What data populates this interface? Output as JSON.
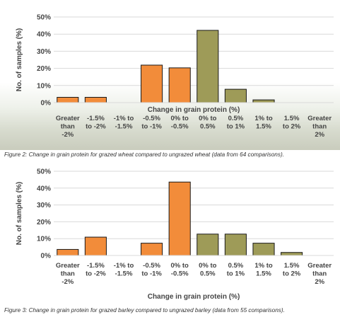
{
  "colors": {
    "negative": "#f28c3a",
    "positive": "#9e9b58",
    "stroke": "#1a1a1a",
    "grid": "#d9d9d9",
    "text": "#444444"
  },
  "chart_data": [
    {
      "type": "bar",
      "caption": "Figure 2: Change in grain protein for grazed wheat compared to ungrazed wheat (data from 64 comparisons).",
      "xlabel": "Change in grain protein (%)",
      "ylabel": "No. of samples (%)",
      "ylim": [
        0,
        50
      ],
      "yticks": [
        "0%",
        "10%",
        "20%",
        "30%",
        "40%",
        "50%"
      ],
      "grid": true,
      "categories": [
        [
          "Greater",
          "than",
          "-2%"
        ],
        [
          "-1.5%",
          "to -2%"
        ],
        [
          "-1% to",
          "-1.5%"
        ],
        [
          "-0.5%",
          "to -1%"
        ],
        [
          "0% to",
          "-0.5%"
        ],
        [
          "0% to",
          "0.5%"
        ],
        [
          "0.5%",
          "to 1%"
        ],
        [
          "1% to",
          "1.5%"
        ],
        [
          "1.5%",
          "to 2%"
        ],
        [
          "Greater",
          "than",
          "2%"
        ]
      ],
      "values": [
        3.1,
        3.1,
        0,
        21.9,
        20.3,
        42.2,
        7.8,
        1.6,
        0,
        0
      ],
      "bar_colors": [
        "negative",
        "negative",
        "negative",
        "negative",
        "negative",
        "positive",
        "positive",
        "positive",
        "positive",
        "positive"
      ]
    },
    {
      "type": "bar",
      "caption": "Figure 3: Change in grain protein for grazed barley compared to ungrazed barley (data from 55 comparisons).",
      "xlabel": "Change in grain protein (%)",
      "ylabel": "No. of samples (%)",
      "ylim": [
        0,
        50
      ],
      "yticks": [
        "0%",
        "10%",
        "20%",
        "30%",
        "40%",
        "50%"
      ],
      "grid": true,
      "categories": [
        [
          "Greater",
          "than",
          "-2%"
        ],
        [
          "-1.5%",
          "to -2%"
        ],
        [
          "-1% to",
          "-1.5%"
        ],
        [
          "-0.5%",
          "to -1%"
        ],
        [
          "0% to",
          "-0.5%"
        ],
        [
          "0% to",
          "0.5%"
        ],
        [
          "0.5%",
          "to 1%"
        ],
        [
          "1% to",
          "1.5%"
        ],
        [
          "1.5%",
          "to 2%"
        ],
        [
          "Greater",
          "than",
          "2%"
        ]
      ],
      "values": [
        3.6,
        10.9,
        0,
        7.3,
        43.6,
        12.7,
        12.7,
        7.3,
        1.8,
        0
      ],
      "bar_colors": [
        "negative",
        "negative",
        "negative",
        "negative",
        "negative",
        "positive",
        "positive",
        "positive",
        "positive",
        "positive"
      ]
    }
  ]
}
